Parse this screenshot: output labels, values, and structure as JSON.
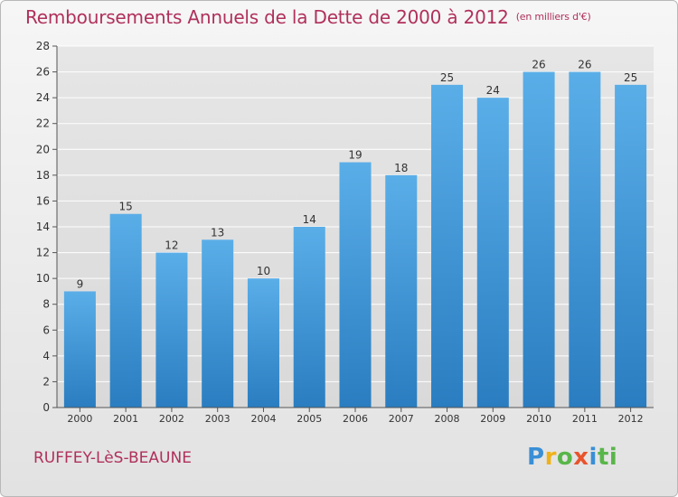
{
  "header": {
    "title": "Remboursements Annuels de la Dette de 2000 à 2012",
    "subtitle": "(en milliers d'€)"
  },
  "footer": {
    "town": "RUFFEY-LèS-BEAUNE",
    "logo_letters": [
      "P",
      "r",
      "o",
      "x",
      "i",
      "t",
      "i"
    ]
  },
  "colors": {
    "title": "#b0305c",
    "bar_top": "#5aaee8",
    "bar_bottom": "#2a7dc0",
    "grid": "#ffffff",
    "axis_text": "#333333"
  },
  "chart_data": {
    "type": "bar",
    "categories": [
      "2000",
      "2001",
      "2002",
      "2003",
      "2004",
      "2005",
      "2006",
      "2007",
      "2008",
      "2009",
      "2010",
      "2011",
      "2012"
    ],
    "values": [
      9,
      15,
      12,
      13,
      10,
      14,
      19,
      18,
      25,
      24,
      26,
      26,
      25
    ],
    "yticks": [
      0,
      2,
      4,
      6,
      8,
      10,
      12,
      14,
      16,
      18,
      20,
      22,
      24,
      26,
      28
    ],
    "ylim": [
      0,
      28
    ],
    "grid": true,
    "legend": "none"
  }
}
